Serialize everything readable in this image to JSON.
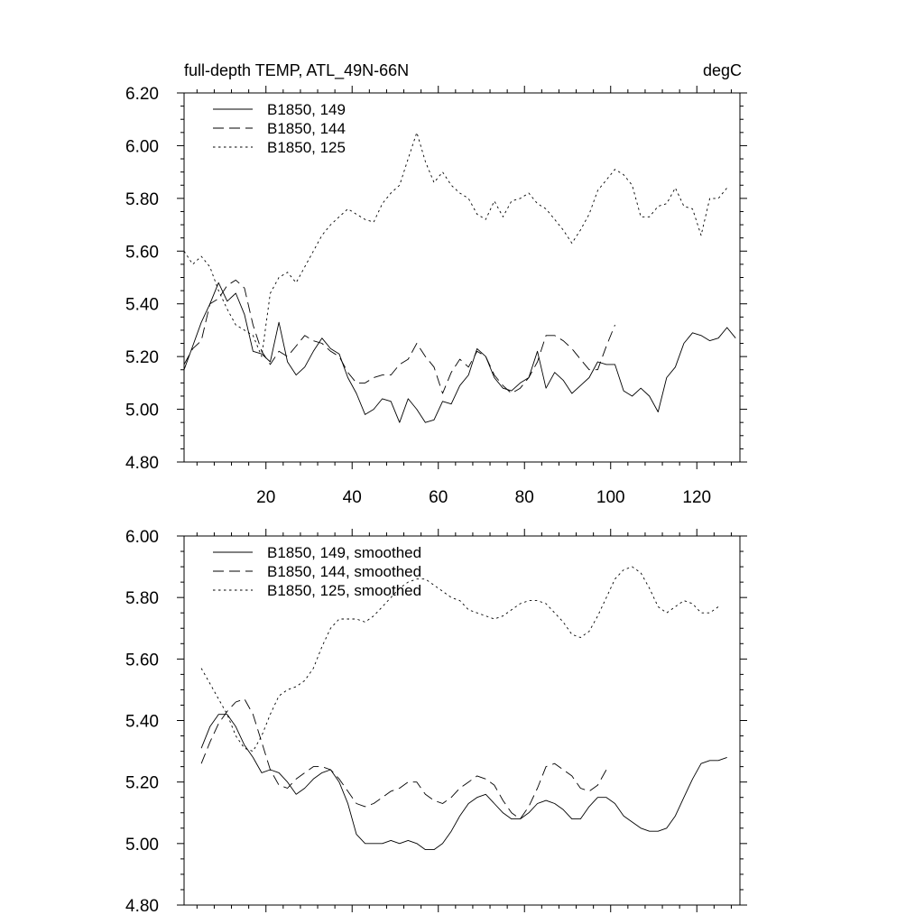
{
  "chart_data": [
    {
      "type": "line",
      "title_left": "full-depth TEMP, ATL_49N-66N",
      "title_right": "degC",
      "xlim": [
        1,
        130
      ],
      "ylim": [
        4.8,
        6.2
      ],
      "xticks": [
        20,
        40,
        60,
        80,
        100,
        120
      ],
      "xtick_labels": [
        "20",
        "40",
        "60",
        "80",
        "100",
        "120"
      ],
      "yticks": [
        4.8,
        5.0,
        5.2,
        5.4,
        5.6,
        5.8,
        6.0,
        6.2
      ],
      "ytick_labels": [
        "4.80",
        "5.00",
        "5.20",
        "5.40",
        "5.60",
        "5.80",
        "6.00",
        "6.20"
      ],
      "legend_position": "top-left",
      "series": [
        {
          "name": "B1850, 149",
          "style": "solid",
          "x": [
            1,
            3,
            5,
            7,
            9,
            11,
            13,
            15,
            17,
            19,
            21,
            23,
            25,
            27,
            29,
            31,
            33,
            35,
            37,
            39,
            41,
            43,
            45,
            47,
            49,
            51,
            53,
            55,
            57,
            59,
            61,
            63,
            65,
            67,
            69,
            71,
            73,
            75,
            77,
            79,
            81,
            83,
            85,
            87,
            89,
            91,
            93,
            95,
            97,
            99,
            101,
            103,
            105,
            107,
            109,
            111,
            113,
            115,
            117,
            119,
            121,
            123,
            125,
            127,
            129
          ],
          "y": [
            5.15,
            5.24,
            5.33,
            5.4,
            5.48,
            5.41,
            5.44,
            5.36,
            5.22,
            5.21,
            5.18,
            5.33,
            5.18,
            5.13,
            5.16,
            5.22,
            5.27,
            5.23,
            5.21,
            5.12,
            5.06,
            4.98,
            5.0,
            5.04,
            5.03,
            4.95,
            5.04,
            5.0,
            4.95,
            4.96,
            5.03,
            5.02,
            5.09,
            5.13,
            5.23,
            5.2,
            5.12,
            5.08,
            5.07,
            5.1,
            5.12,
            5.22,
            5.08,
            5.14,
            5.11,
            5.06,
            5.09,
            5.12,
            5.18,
            5.17,
            5.17,
            5.07,
            5.05,
            5.08,
            5.05,
            4.99,
            5.12,
            5.16,
            5.25,
            5.29,
            5.28,
            5.26,
            5.27,
            5.31,
            5.27
          ]
        },
        {
          "name": "B1850, 144",
          "style": "dashed",
          "x": [
            1,
            3,
            5,
            7,
            9,
            11,
            13,
            15,
            17,
            19,
            21,
            23,
            25,
            27,
            29,
            31,
            33,
            35,
            37,
            39,
            41,
            43,
            45,
            47,
            49,
            51,
            53,
            55,
            57,
            59,
            61,
            63,
            65,
            67,
            69,
            71,
            73,
            75,
            77,
            79,
            81,
            83,
            85,
            87,
            89,
            91,
            93,
            95,
            97,
            99,
            101
          ],
          "y": [
            5.17,
            5.23,
            5.26,
            5.4,
            5.42,
            5.47,
            5.49,
            5.46,
            5.32,
            5.22,
            5.17,
            5.22,
            5.2,
            5.24,
            5.28,
            5.26,
            5.25,
            5.22,
            5.2,
            5.14,
            5.1,
            5.1,
            5.12,
            5.13,
            5.13,
            5.17,
            5.19,
            5.25,
            5.2,
            5.16,
            5.06,
            5.14,
            5.19,
            5.16,
            5.22,
            5.2,
            5.13,
            5.09,
            5.06,
            5.08,
            5.12,
            5.18,
            5.28,
            5.28,
            5.26,
            5.23,
            5.19,
            5.15,
            5.15,
            5.24,
            5.32
          ]
        },
        {
          "name": "B1850, 125",
          "style": "dotted",
          "x": [
            1,
            3,
            5,
            7,
            9,
            11,
            13,
            15,
            17,
            19,
            21,
            23,
            25,
            27,
            29,
            31,
            33,
            35,
            37,
            39,
            41,
            43,
            45,
            47,
            49,
            51,
            53,
            55,
            57,
            59,
            61,
            63,
            65,
            67,
            69,
            71,
            73,
            75,
            77,
            79,
            81,
            83,
            85,
            87,
            89,
            91,
            93,
            95,
            97,
            99,
            101,
            103,
            105,
            107,
            109,
            111,
            113,
            115,
            117,
            119,
            121,
            123,
            125,
            127
          ],
          "y": [
            5.6,
            5.55,
            5.58,
            5.54,
            5.45,
            5.38,
            5.32,
            5.3,
            5.28,
            5.2,
            5.44,
            5.5,
            5.52,
            5.48,
            5.54,
            5.6,
            5.66,
            5.7,
            5.73,
            5.76,
            5.74,
            5.72,
            5.71,
            5.78,
            5.82,
            5.85,
            5.95,
            6.05,
            5.94,
            5.86,
            5.9,
            5.85,
            5.82,
            5.8,
            5.74,
            5.72,
            5.79,
            5.73,
            5.79,
            5.8,
            5.82,
            5.78,
            5.76,
            5.72,
            5.68,
            5.63,
            5.68,
            5.74,
            5.83,
            5.87,
            5.91,
            5.89,
            5.85,
            5.73,
            5.73,
            5.77,
            5.78,
            5.84,
            5.77,
            5.76,
            5.66,
            5.8,
            5.8,
            5.84
          ]
        }
      ]
    },
    {
      "type": "line",
      "xlim": [
        1,
        130
      ],
      "ylim": [
        4.8,
        6.0
      ],
      "xticks": [
        20,
        40,
        60,
        80,
        100,
        120
      ],
      "yticks": [
        4.8,
        5.0,
        5.2,
        5.4,
        5.6,
        5.8,
        6.0
      ],
      "ytick_labels": [
        "4.80",
        "5.00",
        "5.20",
        "5.40",
        "5.60",
        "5.80",
        "6.00"
      ],
      "legend_position": "top-left",
      "series": [
        {
          "name": "B1850, 149, smoothed",
          "style": "solid",
          "x": [
            5,
            7,
            9,
            11,
            13,
            15,
            17,
            19,
            21,
            23,
            25,
            27,
            29,
            31,
            33,
            35,
            37,
            39,
            41,
            43,
            45,
            47,
            49,
            51,
            53,
            55,
            57,
            59,
            61,
            63,
            65,
            67,
            69,
            71,
            73,
            75,
            77,
            79,
            81,
            83,
            85,
            87,
            89,
            91,
            93,
            95,
            97,
            99,
            101,
            103,
            105,
            107,
            109,
            111,
            113,
            115,
            117,
            119,
            121,
            123,
            125,
            127
          ],
          "y": [
            5.31,
            5.38,
            5.42,
            5.42,
            5.38,
            5.32,
            5.28,
            5.23,
            5.24,
            5.23,
            5.2,
            5.16,
            5.18,
            5.21,
            5.23,
            5.24,
            5.2,
            5.13,
            5.03,
            5.0,
            5.0,
            5.0,
            5.01,
            5.0,
            5.01,
            5.0,
            4.98,
            4.98,
            5.0,
            5.04,
            5.09,
            5.13,
            5.15,
            5.16,
            5.13,
            5.1,
            5.08,
            5.08,
            5.1,
            5.13,
            5.14,
            5.13,
            5.11,
            5.08,
            5.08,
            5.12,
            5.15,
            5.15,
            5.13,
            5.09,
            5.07,
            5.05,
            5.04,
            5.04,
            5.05,
            5.09,
            5.15,
            5.21,
            5.26,
            5.27,
            5.27,
            5.28
          ]
        },
        {
          "name": "B1850, 144, smoothed",
          "style": "dashed",
          "x": [
            5,
            7,
            9,
            11,
            13,
            15,
            17,
            19,
            21,
            23,
            25,
            27,
            29,
            31,
            33,
            35,
            37,
            39,
            41,
            43,
            45,
            47,
            49,
            51,
            53,
            55,
            57,
            59,
            61,
            63,
            65,
            67,
            69,
            71,
            73,
            75,
            77,
            79,
            81,
            83,
            85,
            87,
            89,
            91,
            93,
            95,
            97,
            99
          ],
          "y": [
            5.26,
            5.33,
            5.39,
            5.43,
            5.46,
            5.47,
            5.42,
            5.33,
            5.24,
            5.19,
            5.18,
            5.21,
            5.23,
            5.25,
            5.25,
            5.24,
            5.21,
            5.17,
            5.13,
            5.12,
            5.13,
            5.15,
            5.17,
            5.18,
            5.2,
            5.2,
            5.16,
            5.14,
            5.13,
            5.15,
            5.18,
            5.2,
            5.22,
            5.21,
            5.19,
            5.14,
            5.1,
            5.08,
            5.12,
            5.18,
            5.25,
            5.26,
            5.24,
            5.22,
            5.18,
            5.17,
            5.19,
            5.24
          ]
        },
        {
          "name": "B1850, 125, smoothed",
          "style": "dotted",
          "x": [
            5,
            7,
            9,
            11,
            13,
            15,
            17,
            19,
            21,
            23,
            25,
            27,
            29,
            31,
            33,
            35,
            37,
            39,
            41,
            43,
            45,
            47,
            49,
            51,
            53,
            55,
            57,
            59,
            61,
            63,
            65,
            67,
            69,
            71,
            73,
            75,
            77,
            79,
            81,
            83,
            85,
            87,
            89,
            91,
            93,
            95,
            97,
            99,
            101,
            103,
            105,
            107,
            109,
            111,
            113,
            115,
            117,
            119,
            121,
            123,
            125
          ],
          "y": [
            5.57,
            5.52,
            5.47,
            5.42,
            5.35,
            5.31,
            5.3,
            5.35,
            5.42,
            5.48,
            5.5,
            5.51,
            5.53,
            5.57,
            5.64,
            5.7,
            5.73,
            5.73,
            5.73,
            5.72,
            5.74,
            5.77,
            5.8,
            5.83,
            5.85,
            5.86,
            5.86,
            5.84,
            5.82,
            5.8,
            5.79,
            5.76,
            5.75,
            5.74,
            5.73,
            5.74,
            5.76,
            5.78,
            5.79,
            5.79,
            5.78,
            5.75,
            5.72,
            5.68,
            5.67,
            5.69,
            5.74,
            5.8,
            5.86,
            5.89,
            5.9,
            5.88,
            5.83,
            5.77,
            5.75,
            5.77,
            5.79,
            5.78,
            5.75,
            5.75,
            5.77
          ]
        }
      ]
    }
  ]
}
